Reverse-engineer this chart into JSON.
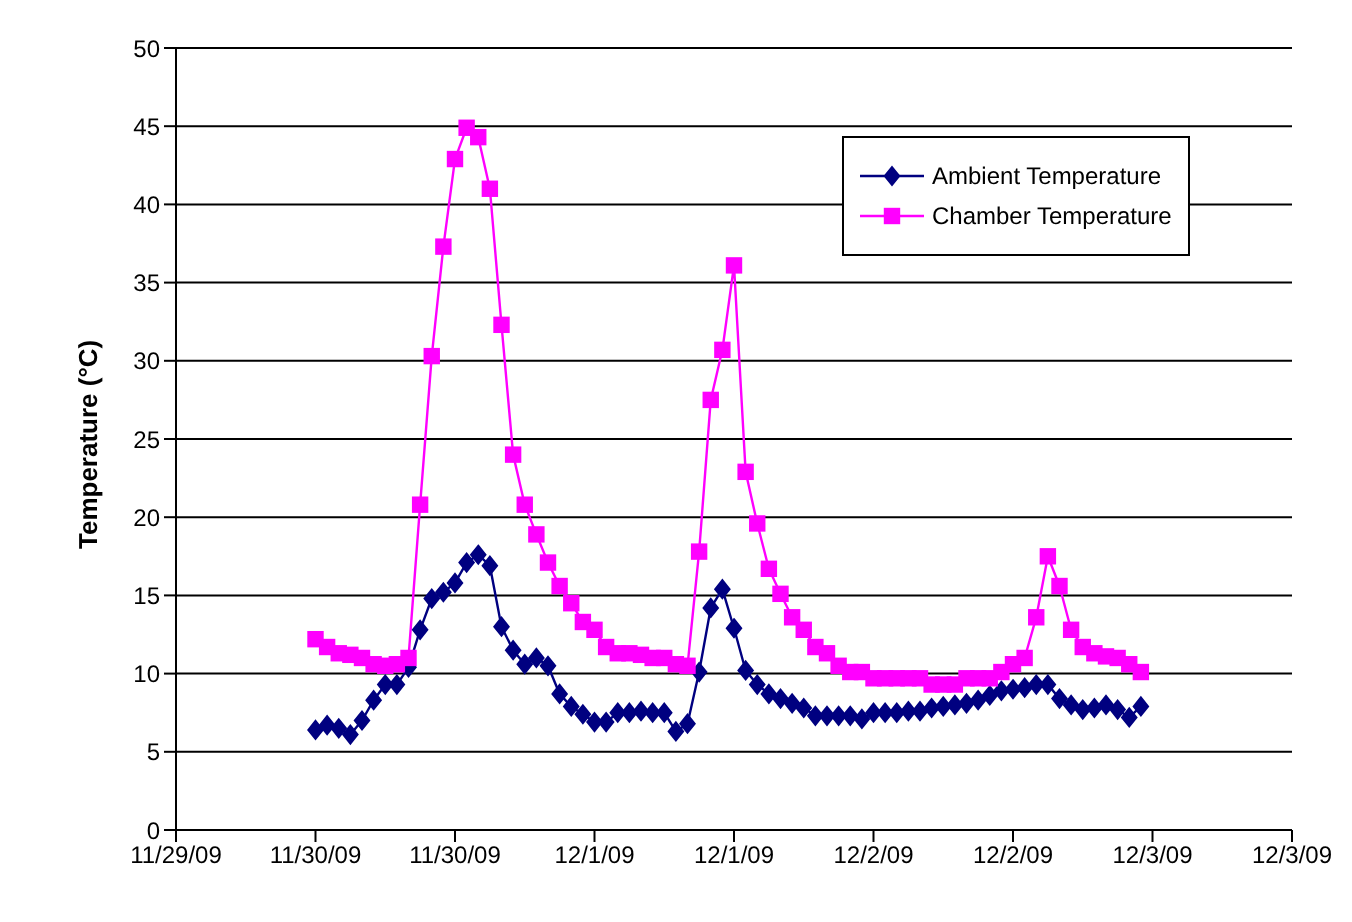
{
  "chart_data": {
    "type": "line",
    "ylabel": "Temperature (°C)",
    "x": [
      "--11-30T00:00",
      "--11-30T01:00",
      "--11-30T02:00",
      "--11-30T03:00",
      "--11-30T04:00",
      "--11-30T05:00",
      "--11-30T06:00",
      "--11-30T07:00",
      "--11-30T08:00",
      "--11-30T09:00",
      "--11-30T10:00",
      "--11-30T11:00",
      "--11-30T12:00",
      "--11-30T13:00",
      "--11-30T14:00",
      "--11-30T15:00",
      "--11-30T16:00",
      "--11-30T17:00",
      "--11-30T18:00",
      "--11-30T19:00",
      "--11-30T20:00",
      "--11-30T21:00",
      "--11-30T22:00",
      "--11-30T23:00",
      "--12-01T00:00",
      "--12-01T01:00",
      "--12-01T02:00",
      "--12-01T03:00",
      "--12-01T04:00",
      "--12-01T05:00",
      "--12-01T06:00",
      "--12-01T07:00",
      "--12-01T08:00",
      "--12-01T09:00",
      "--12-01T10:00",
      "--12-01T11:00",
      "--12-01T12:00",
      "--12-01T13:00",
      "--12-01T14:00",
      "--12-01T15:00",
      "--12-01T16:00",
      "--12-01T17:00",
      "--12-01T18:00",
      "--12-01T19:00",
      "--12-01T20:00",
      "--12-01T21:00",
      "--12-01T22:00",
      "--12-01T23:00",
      "--12-02T00:00",
      "--12-02T01:00",
      "--12-02T02:00",
      "--12-02T03:00",
      "--12-02T04:00",
      "--12-02T05:00",
      "--12-02T06:00",
      "--12-02T07:00",
      "--12-02T08:00",
      "--12-02T09:00",
      "--12-02T10:00",
      "--12-02T11:00",
      "--12-02T12:00",
      "--12-02T13:00",
      "--12-02T14:00",
      "--12-02T15:00",
      "--12-02T16:00",
      "--12-02T17:00",
      "--12-02T18:00",
      "--12-02T19:00",
      "--12-02T20:00",
      "--12-02T21:00",
      "--12-02T22:00",
      "--12-02T23:00"
    ],
    "series": [
      {
        "name": "Ambient Temperature",
        "color": "#000080",
        "marker": "diamond",
        "values": [
          6.4,
          6.7,
          6.5,
          6.1,
          7.0,
          8.3,
          9.3,
          9.3,
          10.4,
          12.8,
          14.8,
          15.2,
          15.8,
          17.1,
          17.6,
          16.9,
          13.0,
          11.5,
          10.6,
          11.0,
          10.5,
          8.7,
          7.9,
          7.4,
          6.9,
          6.9,
          7.5,
          7.5,
          7.6,
          7.5,
          7.5,
          6.3,
          6.8,
          10.1,
          14.2,
          15.4,
          12.9,
          10.2,
          9.3,
          8.7,
          8.4,
          8.1,
          7.8,
          7.3,
          7.3,
          7.3,
          7.3,
          7.1,
          7.5,
          7.5,
          7.5,
          7.6,
          7.6,
          7.8,
          7.9,
          8.0,
          8.1,
          8.3,
          8.6,
          8.9,
          9.0,
          9.1,
          9.3,
          9.3,
          8.4,
          8.0,
          7.7,
          7.8,
          8.0,
          7.7,
          7.2,
          7.9
        ]
      },
      {
        "name": "Chamber Temperature",
        "color": "#ff00ff",
        "marker": "square",
        "values": [
          12.2,
          11.7,
          11.3,
          11.2,
          11.0,
          10.6,
          10.5,
          10.6,
          11.0,
          20.8,
          30.3,
          37.3,
          42.9,
          44.9,
          44.3,
          41.0,
          32.3,
          24.0,
          20.8,
          18.9,
          17.1,
          15.6,
          14.5,
          13.3,
          12.8,
          11.7,
          11.3,
          11.3,
          11.2,
          11.0,
          11.0,
          10.6,
          10.5,
          17.8,
          27.5,
          30.7,
          36.1,
          22.9,
          19.6,
          16.7,
          15.1,
          13.6,
          12.8,
          11.7,
          11.3,
          10.5,
          10.1,
          10.1,
          9.7,
          9.7,
          9.7,
          9.7,
          9.7,
          9.3,
          9.3,
          9.3,
          9.7,
          9.7,
          9.7,
          10.1,
          10.6,
          11.0,
          13.6,
          17.5,
          15.6,
          12.8,
          11.7,
          11.3,
          11.1,
          11.0,
          10.6,
          10.1
        ]
      }
    ],
    "xlim": [
      "--11-29T12:00",
      "--12-03T12:00"
    ],
    "xticks": [
      {
        "value": "--11-29T12:00",
        "label": "11/29/09"
      },
      {
        "value": "--11-30T00:00",
        "label": "11/30/09"
      },
      {
        "value": "--11-30T12:00",
        "label": "11/30/09"
      },
      {
        "value": "--12-01T00:00",
        "label": "12/1/09"
      },
      {
        "value": "--12-01T12:00",
        "label": "12/1/09"
      },
      {
        "value": "--12-02T00:00",
        "label": "12/2/09"
      },
      {
        "value": "--12-02T12:00",
        "label": "12/2/09"
      },
      {
        "value": "--12-03T00:00",
        "label": "12/3/09"
      },
      {
        "value": "--12-03T12:00",
        "label": "12/3/09"
      }
    ],
    "ylim": [
      0,
      50
    ],
    "yticks": [
      0,
      5,
      10,
      15,
      20,
      25,
      30,
      35,
      40,
      45,
      50
    ],
    "grid": "y",
    "legend": "top right",
    "line_style": "solid"
  }
}
